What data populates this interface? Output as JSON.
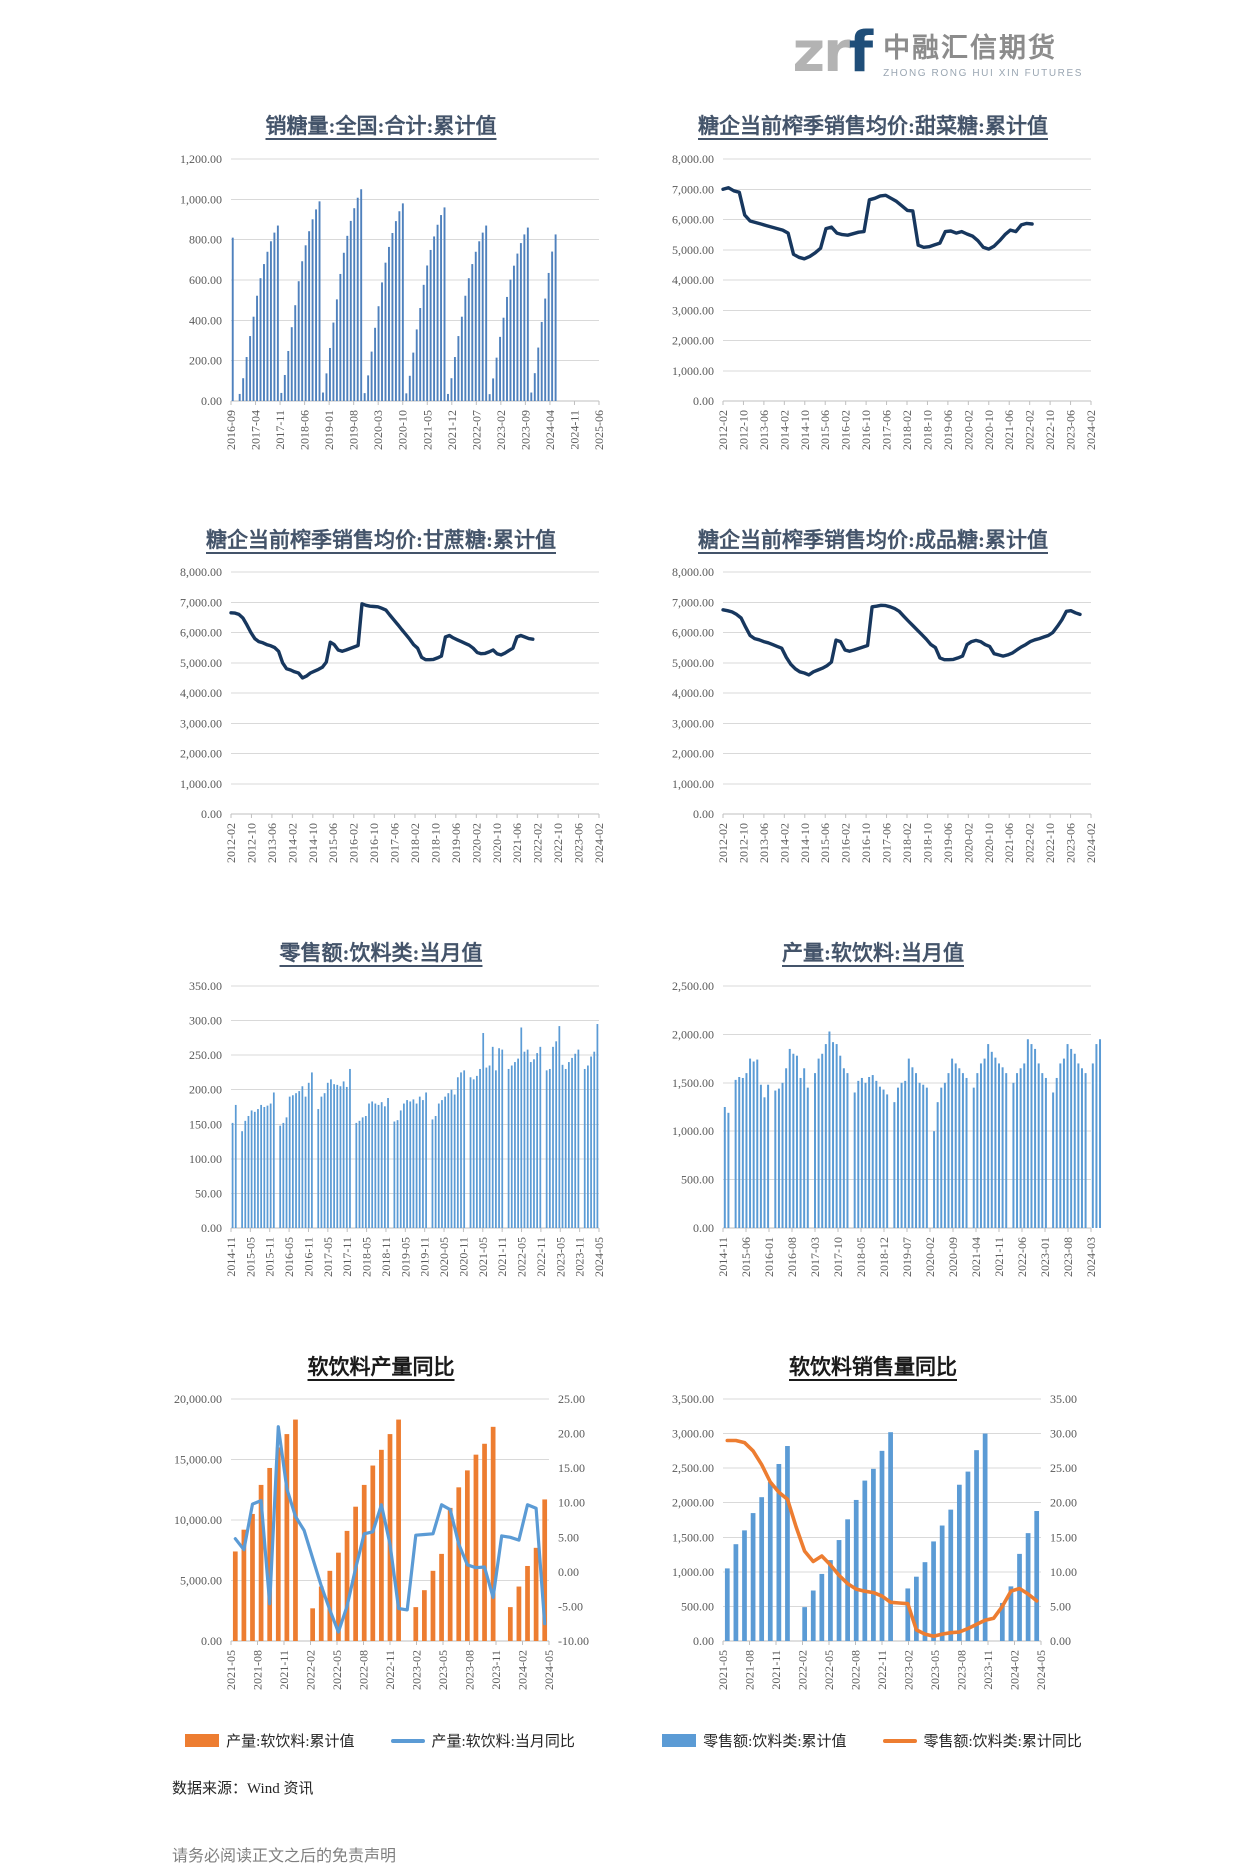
{
  "logo": {
    "zr": "zr",
    "f": "f",
    "name_cn": "中融汇信期货",
    "name_en": "ZHONG RONG HUI XIN FUTURES",
    "brand_navy": "#1f4e79",
    "brand_gray": "#b3b3b3"
  },
  "page": {
    "source_note": "数据来源：Wind 资讯",
    "disclaimer": "请务必阅读正文之后的免责声明"
  },
  "colors": {
    "bar_steel_blue": "#4f81bd",
    "bar_light_blue": "#5b9bd5",
    "line_navy": "#17375e",
    "line_orange": "#ed7d31",
    "grid": "#d9d9d9",
    "axis": "#bfbfbf"
  },
  "chart_data": [
    {
      "type": "bar",
      "title": "销糖量:全国:合计:累计值",
      "legend_position": "none",
      "grid": true,
      "left_axis": {
        "min": 0,
        "max": 1200,
        "step": 200
      },
      "axis_slots": 106,
      "x_ticks": [
        "2016-09",
        "2017-04",
        "2017-11",
        "2018-06",
        "2019-01",
        "2019-08",
        "2020-03",
        "2020-10",
        "2021-05",
        "2021-12",
        "2022-07",
        "2023-02",
        "2023-09",
        "2024-04",
        "2024-11",
        "2025-06"
      ],
      "series": [
        {
          "name": "销糖量:全国:合计:累计值",
          "type": "bar",
          "axis": "left",
          "color": "#4f81bd",
          "values": [
            810,
            null,
            35,
            113,
            218,
            322,
            418,
            522,
            609,
            679,
            740,
            792,
            835,
            870,
            40,
            129,
            248,
            366,
            475,
            594,
            693,
            772,
            842,
            901,
            950,
            990,
            42,
            137,
            263,
            389,
            504,
            630,
            735,
            819,
            893,
            956,
            1008,
            1050,
            39,
            127,
            245,
            363,
            470,
            588,
            686,
            764,
            833,
            892,
            941,
            980,
            38,
            125,
            240,
            355,
            461,
            576,
            672,
            749,
            816,
            874,
            922,
            960,
            35,
            113,
            218,
            322,
            418,
            522,
            609,
            679,
            740,
            792,
            835,
            870,
            34,
            112,
            215,
            318,
            413,
            516,
            602,
            671,
            731,
            783,
            826,
            860,
            42,
            138,
            265,
            392,
            508,
            635,
            741,
            826
          ]
        }
      ]
    },
    {
      "type": "line",
      "title": "糖企当前榨季销售均价:甜菜糖:累计值",
      "legend_position": "none",
      "grid": true,
      "left_axis": {
        "min": 0,
        "max": 8000,
        "step": 1000
      },
      "x_ticks": [
        "2012-02",
        "2012-10",
        "2013-06",
        "2014-02",
        "2014-10",
        "2015-06",
        "2016-02",
        "2016-10",
        "2017-06",
        "2018-02",
        "2018-10",
        "2019-06",
        "2020-02",
        "2020-10",
        "2021-06",
        "2022-02",
        "2022-10",
        "2023-06",
        "2024-02"
      ],
      "series": [
        {
          "name": "糖企当前榨季销售均价:甜菜糖:累计值",
          "type": "line",
          "axis": "left",
          "color": "#17375e",
          "width": 3.4,
          "span_frac": 0.84,
          "values": [
            7000,
            7050,
            6950,
            6900,
            6150,
            5950,
            5900,
            5850,
            5800,
            5750,
            5700,
            5650,
            5550,
            4850,
            4750,
            4700,
            4780,
            4900,
            5050,
            5700,
            5750,
            5550,
            5500,
            5480,
            5530,
            5580,
            5600,
            6650,
            6700,
            6780,
            6800,
            6700,
            6600,
            6450,
            6300,
            6280,
            5150,
            5080,
            5100,
            5160,
            5220,
            5600,
            5620,
            5550,
            5600,
            5520,
            5450,
            5300,
            5080,
            5020,
            5120,
            5300,
            5500,
            5650,
            5600,
            5820,
            5870,
            5850
          ]
        }
      ]
    },
    {
      "type": "line",
      "title": "糖企当前榨季销售均价:甘蔗糖:累计值",
      "legend_position": "none",
      "grid": true,
      "left_axis": {
        "min": 0,
        "max": 8000,
        "step": 1000
      },
      "x_ticks": [
        "2012-02",
        "2012-10",
        "2013-06",
        "2014-02",
        "2014-10",
        "2015-06",
        "2016-02",
        "2016-10",
        "2017-06",
        "2018-02",
        "2018-10",
        "2019-06",
        "2020-02",
        "2020-10",
        "2021-06",
        "2022-02",
        "2022-10",
        "2023-06",
        "2024-02"
      ],
      "series": [
        {
          "name": "糖企当前榨季销售均价:甘蔗糖:累计值",
          "type": "line",
          "axis": "left",
          "color": "#17375e",
          "width": 3.4,
          "span_frac": 0.82,
          "values": [
            6650,
            6640,
            6600,
            6480,
            6250,
            6000,
            5800,
            5700,
            5660,
            5600,
            5560,
            5500,
            5380,
            5000,
            4800,
            4760,
            4700,
            4660,
            4500,
            4560,
            4660,
            4720,
            4780,
            4850,
            5020,
            5680,
            5600,
            5420,
            5380,
            5420,
            5470,
            5520,
            5570,
            6950,
            6900,
            6870,
            6860,
            6850,
            6800,
            6740,
            6580,
            6420,
            6260,
            6100,
            5940,
            5780,
            5600,
            5480,
            5180,
            5100,
            5100,
            5110,
            5160,
            5220,
            5850,
            5900,
            5820,
            5760,
            5700,
            5640,
            5580,
            5480,
            5340,
            5300,
            5310,
            5360,
            5420,
            5300,
            5260,
            5320,
            5400,
            5480,
            5850,
            5900,
            5850,
            5800,
            5780
          ]
        }
      ]
    },
    {
      "type": "line",
      "title": "糖企当前榨季销售均价:成品糖:累计值",
      "legend_position": "none",
      "grid": true,
      "left_axis": {
        "min": 0,
        "max": 8000,
        "step": 1000
      },
      "x_ticks": [
        "2012-02",
        "2012-10",
        "2013-06",
        "2014-02",
        "2014-10",
        "2015-06",
        "2016-02",
        "2016-10",
        "2017-06",
        "2018-02",
        "2018-10",
        "2019-06",
        "2020-02",
        "2020-10",
        "2021-06",
        "2022-02",
        "2022-10",
        "2023-06",
        "2024-02"
      ],
      "series": [
        {
          "name": "糖企当前榨季销售均价:成品糖:累计值",
          "type": "line",
          "axis": "left",
          "color": "#17375e",
          "width": 3.4,
          "span_frac": 0.97,
          "values": [
            6750,
            6720,
            6680,
            6600,
            6480,
            6180,
            5900,
            5800,
            5760,
            5700,
            5660,
            5600,
            5540,
            5480,
            5180,
            4950,
            4800,
            4700,
            4660,
            4600,
            4700,
            4760,
            4820,
            4900,
            5020,
            5750,
            5700,
            5420,
            5380,
            5420,
            5470,
            5520,
            5570,
            6850,
            6870,
            6900,
            6890,
            6850,
            6790,
            6700,
            6540,
            6380,
            6230,
            6080,
            5930,
            5780,
            5600,
            5500,
            5160,
            5100,
            5100,
            5110,
            5160,
            5220,
            5600,
            5700,
            5740,
            5700,
            5600,
            5540,
            5300,
            5260,
            5220,
            5260,
            5320,
            5420,
            5520,
            5600,
            5700,
            5760,
            5800,
            5850,
            5900,
            6000,
            6200,
            6420,
            6700,
            6720,
            6650,
            6600
          ]
        }
      ]
    },
    {
      "type": "bar",
      "title": "零售额:饮料类:当月值",
      "legend_position": "none",
      "grid": true,
      "left_axis": {
        "min": 0,
        "max": 350,
        "step": 50
      },
      "axis_slots": 116,
      "x_ticks": [
        "2014-11",
        "2015-05",
        "2015-11",
        "2016-05",
        "2016-11",
        "2017-05",
        "2017-11",
        "2018-05",
        "2018-11",
        "2019-05",
        "2019-11",
        "2020-05",
        "2020-11",
        "2021-05",
        "2021-11",
        "2022-05",
        "2022-11",
        "2023-05",
        "2023-11",
        "2024-05"
      ],
      "series": [
        {
          "name": "零售额:饮料类:当月值",
          "type": "bar",
          "axis": "left",
          "color": "#5b9bd5",
          "values": [
            152,
            178,
            null,
            140,
            155,
            162,
            170,
            168,
            172,
            178,
            175,
            177,
            180,
            196,
            null,
            148,
            152,
            160,
            190,
            192,
            195,
            198,
            205,
            190,
            210,
            225,
            null,
            172,
            190,
            195,
            210,
            215,
            208,
            207,
            205,
            212,
            204,
            230,
            null,
            152,
            155,
            160,
            162,
            180,
            183,
            180,
            178,
            182,
            176,
            188,
            null,
            154,
            156,
            170,
            180,
            185,
            183,
            186,
            180,
            190,
            185,
            196,
            null,
            157,
            162,
            180,
            185,
            190,
            195,
            200,
            193,
            218,
            225,
            228,
            null,
            218,
            215,
            220,
            230,
            282,
            232,
            235,
            262,
            228,
            260,
            258,
            null,
            230,
            235,
            240,
            245,
            290,
            255,
            258,
            240,
            244,
            253,
            262,
            null,
            228,
            230,
            262,
            270,
            292,
            236,
            230,
            240,
            246,
            252,
            258,
            null,
            230,
            235,
            248,
            255,
            295
          ]
        }
      ]
    },
    {
      "type": "bar",
      "title": "产量:软饮料:当月值",
      "legend_position": "none",
      "grid": true,
      "left_axis": {
        "min": 0,
        "max": 2500,
        "step": 500
      },
      "axis_slots": 102,
      "x_ticks": [
        "2014-11",
        "2015-06",
        "2016-01",
        "2016-08",
        "2017-03",
        "2017-10",
        "2018-05",
        "2018-12",
        "2019-07",
        "2020-02",
        "2020-09",
        "2021-04",
        "2021-11",
        "2022-06",
        "2023-01",
        "2023-08",
        "2024-03"
      ],
      "series": [
        {
          "name": "产量:软饮料:当月值",
          "type": "bar",
          "axis": "left",
          "color": "#5b9bd5",
          "values": [
            1250,
            1190,
            null,
            1530,
            1560,
            1550,
            1600,
            1750,
            1720,
            1740,
            1480,
            1350,
            1480,
            null,
            1420,
            1440,
            1500,
            1650,
            1850,
            1800,
            1780,
            1550,
            1650,
            1450,
            null,
            1600,
            1750,
            1800,
            1900,
            2030,
            1920,
            1900,
            1780,
            1650,
            1600,
            null,
            1400,
            1520,
            1550,
            1500,
            1560,
            1580,
            1520,
            1460,
            1430,
            1380,
            null,
            1300,
            1450,
            1500,
            1520,
            1750,
            1660,
            1600,
            1500,
            1480,
            1450,
            null,
            1000,
            1300,
            1450,
            1500,
            1600,
            1750,
            1700,
            1650,
            1600,
            1550,
            null,
            1450,
            1600,
            1700,
            1750,
            1900,
            1820,
            1760,
            1700,
            1660,
            1600,
            null,
            1500,
            1600,
            1650,
            1700,
            1950,
            1900,
            1850,
            1700,
            1600,
            1550,
            null,
            1400,
            1550,
            1700,
            1750,
            1900,
            1850,
            1800,
            1700,
            1650,
            1600,
            null,
            1700,
            1900,
            1950
          ]
        }
      ]
    },
    {
      "type": "combo",
      "title": "软饮料产量同比",
      "legend_position": "bottom",
      "grid": true,
      "left_axis": {
        "min": 0,
        "max": 20000,
        "step": 5000
      },
      "right_axis": {
        "min": -10,
        "max": 25,
        "step": 5
      },
      "axis_slots": 37,
      "x_ticks": [
        "2021-05",
        "2021-08",
        "2021-11",
        "2022-02",
        "2022-05",
        "2022-08",
        "2022-11",
        "2023-02",
        "2023-05",
        "2023-08",
        "2023-11",
        "2024-02",
        "2024-05"
      ],
      "series": [
        {
          "name": "产量:软饮料:累计值",
          "type": "bar",
          "axis": "left",
          "color": "#ed7d31",
          "values": [
            7400,
            9200,
            10500,
            12900,
            14300,
            16000,
            17100,
            18300,
            null,
            2700,
            4500,
            5800,
            7300,
            9100,
            11100,
            12900,
            14500,
            15800,
            17100,
            18300,
            null,
            2800,
            4200,
            5800,
            7200,
            11000,
            12700,
            14100,
            15400,
            16300,
            17700,
            null,
            2800,
            4500,
            6200,
            7700,
            11700
          ]
        },
        {
          "name": "产量:软饮料:当月同比",
          "type": "line",
          "axis": "right",
          "color": "#5b9bd5",
          "width": 3.2,
          "values": [
            4.8,
            3.2,
            9.8,
            10.3,
            -4.6,
            21.0,
            12.0,
            8.0,
            6.0,
            2.0,
            -2.0,
            -5.5,
            -8.7,
            -5.0,
            0.5,
            5.5,
            5.8,
            9.7,
            4.0,
            -5.3,
            -5.5,
            5.3,
            5.4,
            5.5,
            9.7,
            9.0,
            4.0,
            1.0,
            0.6,
            0.7,
            -3.7,
            5.2,
            5.0,
            4.6,
            9.7,
            9.2,
            -7.5
          ]
        }
      ],
      "legend": [
        {
          "label": "产量:软饮料:累计值",
          "color": "#ed7d31",
          "shape": "bar"
        },
        {
          "label": "产量:软饮料:当月同比",
          "color": "#5b9bd5",
          "shape": "line"
        }
      ]
    },
    {
      "type": "combo",
      "title": "软饮料销售量同比",
      "legend_position": "bottom",
      "grid": true,
      "left_axis": {
        "min": 0,
        "max": 3500,
        "step": 500
      },
      "right_axis": {
        "min": 0,
        "max": 35,
        "step": 5
      },
      "axis_slots": 37,
      "x_ticks": [
        "2021-05",
        "2021-08",
        "2021-11",
        "2022-02",
        "2022-05",
        "2022-08",
        "2022-11",
        "2023-02",
        "2023-05",
        "2023-08",
        "2023-11",
        "2024-02",
        "2024-05"
      ],
      "series": [
        {
          "name": "零售额:饮料类:累计值",
          "type": "bar",
          "axis": "left",
          "color": "#5b9bd5",
          "values": [
            1050,
            1400,
            1600,
            1850,
            2080,
            2300,
            2560,
            2820,
            null,
            490,
            730,
            970,
            1170,
            1460,
            1760,
            2040,
            2320,
            2490,
            2750,
            3020,
            null,
            760,
            930,
            1140,
            1440,
            1670,
            1900,
            2260,
            2450,
            2760,
            3000,
            null,
            550,
            790,
            1260,
            1560,
            1880
          ]
        },
        {
          "name": "零售额:饮料类:累计同比",
          "type": "line",
          "axis": "right",
          "color": "#ed7d31",
          "width": 3.6,
          "values": [
            29,
            29,
            28.7,
            27.5,
            25.5,
            23,
            21.5,
            20.5,
            16.5,
            13,
            11.5,
            12.3,
            11,
            9.5,
            8.3,
            7.5,
            7.2,
            7,
            6.5,
            5.6,
            5.5,
            5.4,
            1.6,
            1,
            0.7,
            1,
            1.2,
            1.3,
            1.8,
            2.4,
            3,
            3.3,
            5,
            7.2,
            7.6,
            6.8,
            5.8
          ]
        }
      ],
      "legend": [
        {
          "label": "零售额:饮料类:累计值",
          "color": "#5b9bd5",
          "shape": "bar"
        },
        {
          "label": "零售额:饮料类:累计同比",
          "color": "#ed7d31",
          "shape": "line"
        }
      ]
    }
  ]
}
